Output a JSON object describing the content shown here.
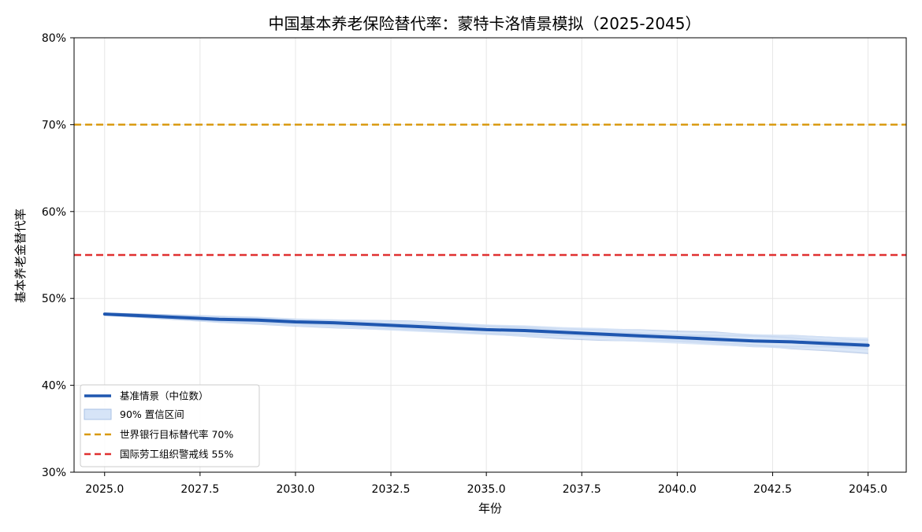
{
  "chart_data": {
    "type": "line",
    "title": "中国基本养老保险替代率：蒙特卡洛情景模拟（2025-2045）",
    "xlabel": "年份",
    "ylabel": "基本养老金替代率",
    "xlim": [
      2024.2,
      2046.0
    ],
    "ylim": [
      0.3,
      0.8
    ],
    "x_ticks": [
      2025.0,
      2027.5,
      2030.0,
      2032.5,
      2035.0,
      2037.5,
      2040.0,
      2042.5,
      2045.0
    ],
    "x_tick_labels": [
      "2025.0",
      "2027.5",
      "2030.0",
      "2032.5",
      "2035.0",
      "2037.5",
      "2040.0",
      "2042.5",
      "2045.0"
    ],
    "y_ticks": [
      0.3,
      0.4,
      0.5,
      0.6,
      0.7,
      0.8
    ],
    "y_tick_labels": [
      "30%",
      "40%",
      "50%",
      "60%",
      "70%",
      "80%"
    ],
    "grid": true,
    "legend_position": "lower-left",
    "x": [
      2025,
      2026,
      2027,
      2028,
      2029,
      2030,
      2031,
      2032,
      2033,
      2034,
      2035,
      2036,
      2037,
      2038,
      2039,
      2040,
      2041,
      2042,
      2043,
      2044,
      2045
    ],
    "series": [
      {
        "name": "基准情景（中位数）",
        "color": "#1f57b0",
        "values": [
          0.482,
          0.48,
          0.478,
          0.476,
          0.475,
          0.473,
          0.472,
          0.47,
          0.468,
          0.466,
          0.464,
          0.463,
          0.461,
          0.459,
          0.457,
          0.455,
          0.453,
          0.451,
          0.45,
          0.448,
          0.446
        ]
      }
    ],
    "confidence_band": {
      "name": "90% 置信区间",
      "color": "#d6e4f7",
      "lower": [
        0.481,
        0.478,
        0.475,
        0.472,
        0.47,
        0.468,
        0.466,
        0.464,
        0.462,
        0.46,
        0.458,
        0.456,
        0.454,
        0.452,
        0.45,
        0.448,
        0.446,
        0.444,
        0.442,
        0.44,
        0.437
      ],
      "upper": [
        0.483,
        0.482,
        0.481,
        0.48,
        0.479,
        0.477,
        0.476,
        0.475,
        0.474,
        0.472,
        0.47,
        0.469,
        0.467,
        0.466,
        0.464,
        0.462,
        0.461,
        0.459,
        0.458,
        0.456,
        0.455
      ]
    },
    "reference_lines": [
      {
        "name": "世界银行目标替代率 70%",
        "value": 0.7,
        "color": "#d99a10"
      },
      {
        "name": "国际劳工组织警戒线 55%",
        "value": 0.55,
        "color": "#e03030"
      }
    ]
  }
}
